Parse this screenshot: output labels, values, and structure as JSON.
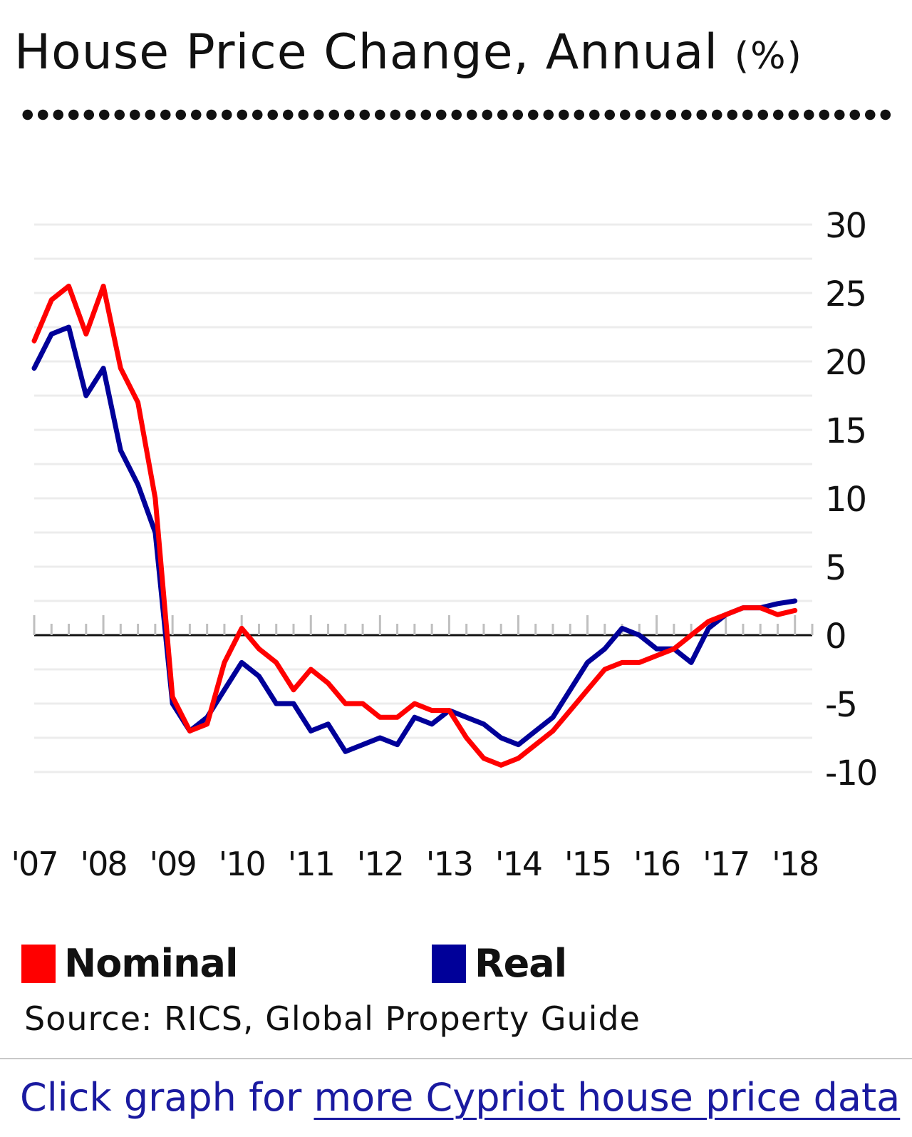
{
  "chart_data": {
    "type": "line",
    "title": "House Price Change, Annual",
    "title_unit": "(%)",
    "xlabel": "",
    "ylabel": "",
    "x": [
      2007.0,
      2007.25,
      2007.5,
      2007.75,
      2008.0,
      2008.25,
      2008.5,
      2008.75,
      2009.0,
      2009.25,
      2009.5,
      2009.75,
      2010.0,
      2010.25,
      2010.5,
      2010.75,
      2011.0,
      2011.25,
      2011.5,
      2011.75,
      2012.0,
      2012.25,
      2012.5,
      2012.75,
      2013.0,
      2013.25,
      2013.5,
      2013.75,
      2014.0,
      2014.25,
      2014.5,
      2014.75,
      2015.0,
      2015.25,
      2015.5,
      2015.75,
      2016.0,
      2016.25,
      2016.5,
      2016.75,
      2017.0,
      2017.25,
      2017.5,
      2017.75,
      2018.0
    ],
    "x_tick_labels": [
      "'07",
      "'08",
      "'09",
      "'10",
      "'11",
      "'12",
      "'13",
      "'14",
      "'15",
      "'16",
      "'17",
      "'18"
    ],
    "x_tick_values": [
      2007,
      2008,
      2009,
      2010,
      2011,
      2012,
      2013,
      2014,
      2015,
      2016,
      2017,
      2018
    ],
    "ylim": [
      -10,
      30
    ],
    "y_ticks": [
      30,
      25,
      20,
      15,
      10,
      5,
      0,
      -5,
      -10
    ],
    "y_axis_position": "right",
    "grid": true,
    "legend_position": "bottom",
    "series": [
      {
        "name": "Nominal",
        "color": "#ff0000",
        "values": [
          21.5,
          24.5,
          25.5,
          22.0,
          25.5,
          19.5,
          17.0,
          10.0,
          -4.5,
          -7.0,
          -6.5,
          -2.0,
          0.5,
          -1.0,
          -2.0,
          -4.0,
          -2.5,
          -3.5,
          -5.0,
          -5.0,
          -6.0,
          -6.0,
          -5.0,
          -5.5,
          -5.5,
          -7.5,
          -9.0,
          -9.5,
          -9.0,
          -8.0,
          -7.0,
          -5.5,
          -4.0,
          -2.5,
          -2.0,
          -2.0,
          -1.5,
          -1.0,
          0.0,
          1.0,
          1.5,
          2.0,
          2.0,
          1.5,
          1.8
        ]
      },
      {
        "name": "Real",
        "color": "#000099",
        "values": [
          19.5,
          22.0,
          22.5,
          17.5,
          19.5,
          13.5,
          11.0,
          7.5,
          -5.0,
          -7.0,
          -6.0,
          -4.0,
          -2.0,
          -3.0,
          -5.0,
          -5.0,
          -7.0,
          -6.5,
          -8.5,
          -8.0,
          -7.5,
          -8.0,
          -6.0,
          -6.5,
          -5.5,
          -6.0,
          -6.5,
          -7.5,
          -8.0,
          -7.0,
          -6.0,
          -4.0,
          -2.0,
          -1.0,
          0.5,
          0.0,
          -1.0,
          -1.0,
          -2.0,
          0.5,
          1.5,
          2.0,
          2.0,
          2.3,
          2.5
        ]
      }
    ]
  },
  "legend": {
    "nominal_label": "Nominal",
    "real_label": "Real",
    "nominal_color": "#ff0000",
    "real_color": "#000099"
  },
  "footer": {
    "source": "Source: RICS, Global Property Guide",
    "link_prefix": "Click graph for ",
    "link_text": "more Cypriot house price data"
  }
}
